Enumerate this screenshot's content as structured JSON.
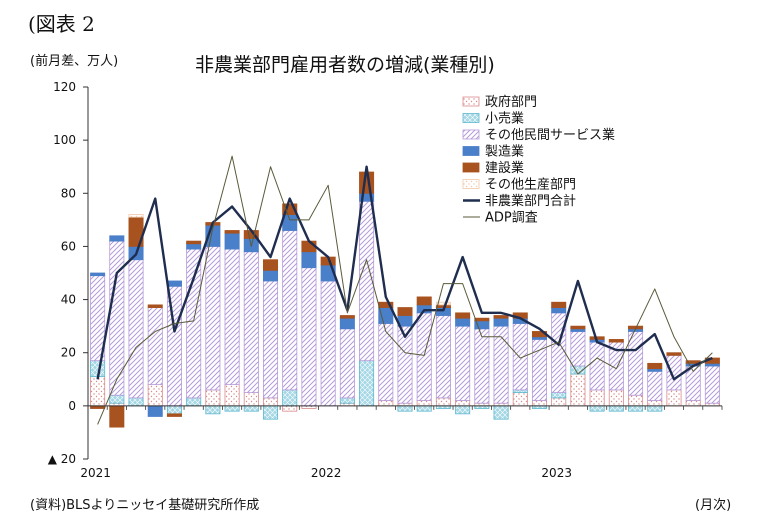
{
  "figure_label": "(図表 2",
  "unit_label": "(前月差、万人)",
  "source_note": "(資料)BLSよりニッセイ基礎研究所作成",
  "x_unit_label": "(月次)",
  "chart_data": {
    "type": "bar",
    "title": "非農業部門雇用者数の増減(業種別)",
    "ylim": [
      -20,
      120
    ],
    "yticks": [
      -20,
      0,
      20,
      40,
      60,
      80,
      100,
      120
    ],
    "ytick_labels": [
      "▲ 20",
      "0",
      "20",
      "40",
      "60",
      "80",
      "100",
      "120"
    ],
    "xtick_labels": [
      {
        "index": 0,
        "label": "2021"
      },
      {
        "index": 12,
        "label": "2022"
      },
      {
        "index": 24,
        "label": "2023"
      }
    ],
    "grid": false,
    "legend_position": "top-right",
    "stacked": true,
    "months": [
      "2021-01",
      "2021-02",
      "2021-03",
      "2021-04",
      "2021-05",
      "2021-06",
      "2021-07",
      "2021-08",
      "2021-09",
      "2021-10",
      "2021-11",
      "2021-12",
      "2022-01",
      "2022-02",
      "2022-03",
      "2022-04",
      "2022-05",
      "2022-06",
      "2022-07",
      "2022-08",
      "2022-09",
      "2022-10",
      "2022-11",
      "2022-12",
      "2023-01",
      "2023-02",
      "2023-03",
      "2023-04",
      "2023-05",
      "2023-06",
      "2023-07",
      "2023-08",
      "2023-09"
    ],
    "bar_series": [
      {
        "name": "政府部門",
        "color": "#d98b8b",
        "pattern": "dots",
        "values": [
          11,
          1,
          0,
          8,
          0,
          0,
          6,
          8,
          5,
          3,
          -2,
          -1,
          0,
          1,
          0,
          2,
          1,
          2,
          3,
          2,
          1,
          1,
          5,
          2,
          3,
          12,
          6,
          6,
          4,
          2,
          6,
          2,
          1
        ]
      },
      {
        "name": "小売業",
        "color": "#5bb8cf",
        "pattern": "cross",
        "values": [
          6,
          3,
          3,
          0,
          -3,
          3,
          -3,
          -2,
          -2,
          -5,
          6,
          0,
          0,
          2,
          17,
          0,
          -2,
          -2,
          -1,
          -3,
          -1,
          -5,
          1,
          -1,
          2,
          3,
          -2,
          -2,
          -2,
          -2,
          0,
          0,
          0
        ]
      },
      {
        "name": "その他民間サービス業",
        "color": "#b59bd9",
        "pattern": "diagonal",
        "values": [
          32,
          58,
          52,
          29,
          45,
          56,
          54,
          51,
          53,
          44,
          60,
          52,
          47,
          26,
          60,
          29,
          29,
          33,
          31,
          28,
          28,
          29,
          25,
          23,
          30,
          13,
          18,
          18,
          24,
          11,
          13,
          13,
          14
        ]
      },
      {
        "name": "製造業",
        "color": "#4a7fc9",
        "pattern": "solid",
        "values": [
          1,
          2,
          5,
          -4,
          2,
          2,
          8,
          6,
          5,
          4,
          6,
          6,
          6,
          4,
          3,
          6,
          4,
          3,
          3,
          3,
          3,
          3,
          2,
          1,
          2,
          1,
          1,
          0,
          1,
          1,
          0,
          1,
          1
        ]
      },
      {
        "name": "建設業",
        "color": "#a8521f",
        "pattern": "solid",
        "values": [
          -1,
          -8,
          11,
          1,
          -1,
          1,
          1,
          1,
          3,
          4,
          4,
          4,
          3,
          1,
          8,
          2,
          3,
          3,
          1,
          2,
          1,
          1,
          2,
          2,
          2,
          1,
          1,
          1,
          1,
          2,
          1,
          1,
          2
        ]
      },
      {
        "name": "その他生産部門",
        "color": "#f2c7a8",
        "pattern": "dots",
        "values": [
          0,
          0,
          1,
          0,
          0,
          0,
          0,
          0,
          0,
          0,
          0,
          0,
          0,
          0,
          0,
          0,
          0,
          0,
          1,
          0,
          0,
          0,
          0,
          0,
          0,
          0,
          0,
          0,
          0,
          0,
          0,
          0,
          0
        ]
      }
    ],
    "line_series": [
      {
        "name": "非農業部門合計",
        "color": "#1f2d4f",
        "values": [
          10,
          50,
          57,
          78,
          28,
          48,
          69,
          75,
          66,
          56,
          78,
          62,
          56,
          36,
          90,
          41,
          26,
          36,
          36,
          56,
          35,
          35,
          33,
          29,
          23,
          47,
          24,
          21,
          21,
          27,
          10,
          15,
          18
        ]
      },
      {
        "name": "ADP調査",
        "color": "#5a5a3a",
        "values": [
          -7,
          10,
          22,
          28,
          31,
          32,
          67,
          94,
          60,
          90,
          70,
          70,
          83,
          35,
          55,
          28,
          20,
          19,
          46,
          46,
          26,
          26,
          18,
          21,
          24,
          12,
          18,
          14,
          29,
          44,
          26,
          13,
          20
        ]
      }
    ]
  }
}
